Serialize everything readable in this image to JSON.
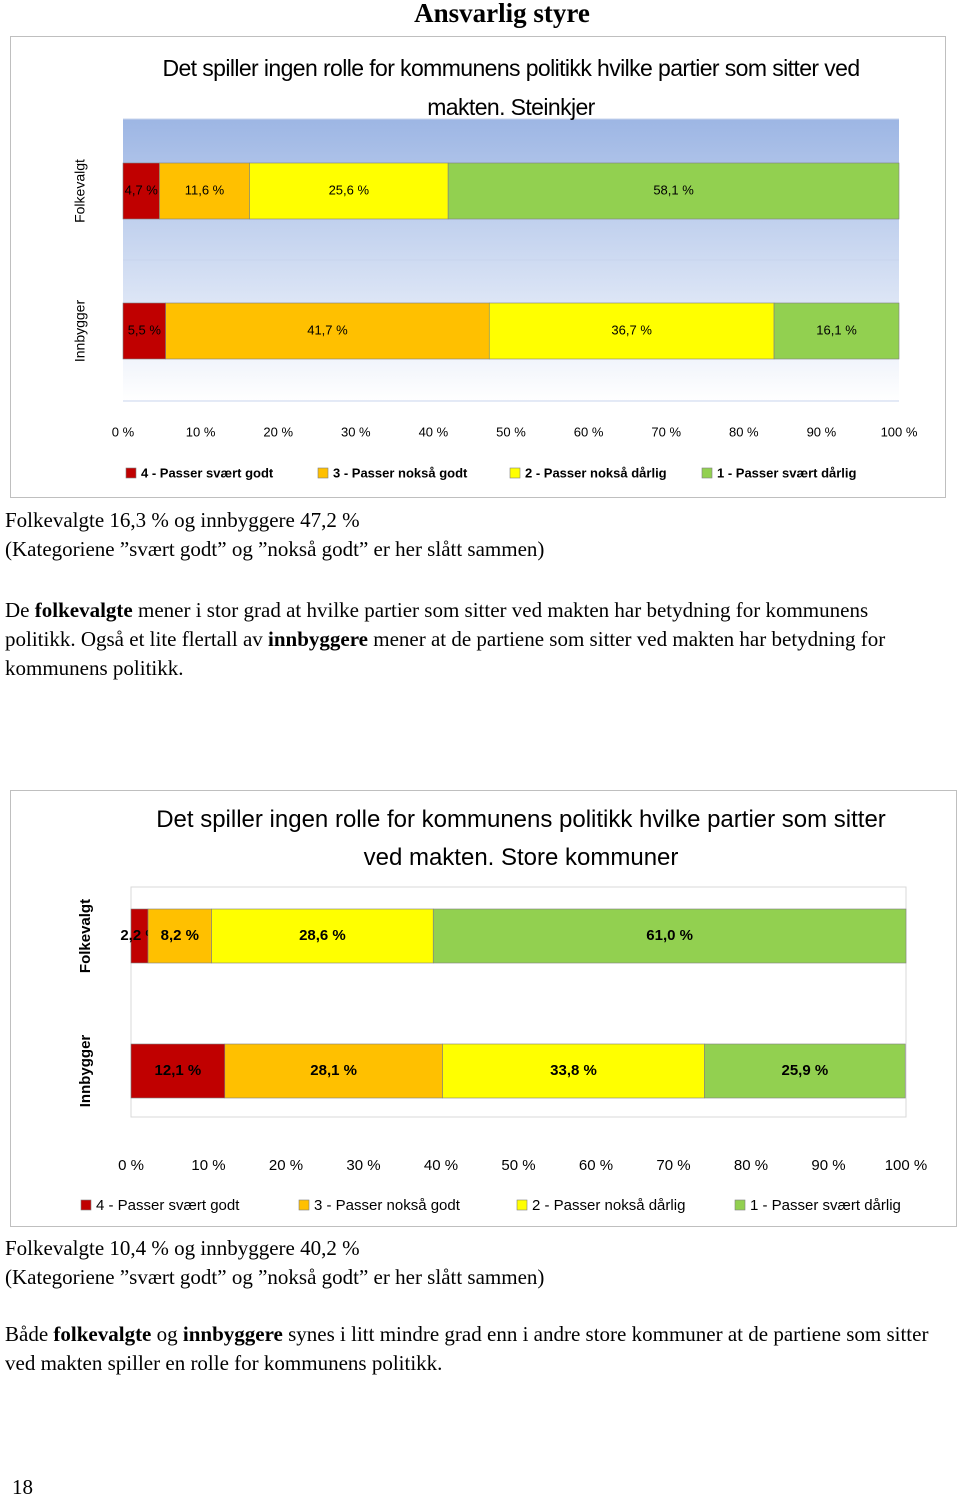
{
  "page_title": "Ansvarlig styre",
  "chart_data": [
    {
      "type": "stacked-bar-horizontal",
      "title": "Det spiller ingen rolle for kommunens politikk hvilke partier som sitter ved makten. Steinkjer",
      "categories": [
        "Folkevalgt",
        "Innbygger"
      ],
      "series": [
        {
          "name": "4 - Passer svært godt",
          "color": "#c00000",
          "values": [
            4.7,
            5.5
          ],
          "value_labels": [
            "4,7 %",
            "5,5 %"
          ]
        },
        {
          "name": "3 - Passer nokså godt",
          "color": "#ffc000",
          "values": [
            11.6,
            41.7
          ],
          "value_labels": [
            "11,6 %",
            "41,7 %"
          ]
        },
        {
          "name": "2 - Passer nokså dårlig",
          "color": "#ffff00",
          "values": [
            25.6,
            36.7
          ],
          "value_labels": [
            "25,6 %",
            "36,7 %"
          ]
        },
        {
          "name": "1 - Passer svært dårlig",
          "color": "#92d050",
          "values": [
            58.1,
            16.1
          ],
          "value_labels": [
            "58,1 %",
            "16,1 %"
          ]
        }
      ],
      "xlim": [
        0,
        100
      ],
      "xticks": [
        {
          "value": 0,
          "label": "0 %"
        },
        {
          "value": 10,
          "label": "10 %"
        },
        {
          "value": 20,
          "label": "20 %"
        },
        {
          "value": 30,
          "label": "30 %"
        },
        {
          "value": 40,
          "label": "40 %"
        },
        {
          "value": 50,
          "label": "50 %"
        },
        {
          "value": 60,
          "label": "60 %"
        },
        {
          "value": 70,
          "label": "70 %"
        },
        {
          "value": 80,
          "label": "80 %"
        },
        {
          "value": 90,
          "label": "90 %"
        },
        {
          "value": 100,
          "label": "100 %"
        }
      ],
      "legend": "bottom"
    },
    {
      "type": "stacked-bar-horizontal",
      "title": "Det spiller ingen rolle for kommunens politikk hvilke partier som sitter ved makten. Store kommuner",
      "categories": [
        "Folkevalgt",
        "Innbygger"
      ],
      "series": [
        {
          "name": "4 - Passer svært godt",
          "color": "#c00000",
          "values": [
            2.2,
            12.1
          ],
          "value_labels": [
            "2,2 %",
            "12,1 %"
          ]
        },
        {
          "name": "3 - Passer nokså godt",
          "color": "#ffc000",
          "values": [
            8.2,
            28.1
          ],
          "value_labels": [
            "8,2 %",
            "28,1 %"
          ]
        },
        {
          "name": "2 - Passer nokså dårlig",
          "color": "#ffff00",
          "values": [
            28.6,
            33.8
          ],
          "value_labels": [
            "28,6 %",
            "33,8 %"
          ]
        },
        {
          "name": "1 - Passer svært dårlig",
          "color": "#92d050",
          "values": [
            61.0,
            25.9
          ],
          "value_labels": [
            "61,0 %",
            "25,9 %"
          ]
        }
      ],
      "xlim": [
        0,
        100
      ],
      "xticks": [
        {
          "value": 0,
          "label": "0 %"
        },
        {
          "value": 10,
          "label": "10 %"
        },
        {
          "value": 20,
          "label": "20 %"
        },
        {
          "value": 30,
          "label": "30 %"
        },
        {
          "value": 40,
          "label": "40 %"
        },
        {
          "value": 50,
          "label": "50 %"
        },
        {
          "value": 60,
          "label": "60 %"
        },
        {
          "value": 70,
          "label": "70 %"
        },
        {
          "value": 80,
          "label": "80 %"
        },
        {
          "value": 90,
          "label": "90 %"
        },
        {
          "value": 100,
          "label": "100 %"
        }
      ],
      "legend": "bottom"
    }
  ],
  "sections": [
    {
      "summary": [
        "Folkevalgte 16,3 % og innbyggere 47,2 %",
        "(Kategoriene ”svært godt” og ”nokså godt” er her slått sammen)"
      ],
      "paragraph": [
        "De ",
        "folkevalgte",
        " mener i stor grad at hvilke partier som sitter ved makten har betydning for kommunens politikk. Også et lite flertall av ",
        "innbyggere",
        " mener at de partiene som sitter ved makten har betydning for kommunens politikk."
      ]
    },
    {
      "summary": [
        "Folkevalgte 10,4 % og innbyggere 40,2 %",
        "(Kategoriene ”svært godt” og ”nokså godt” er her slått sammen)"
      ],
      "paragraph": [
        "Både ",
        "folkevalgte",
        " og ",
        "innbyggere",
        " synes i litt mindre grad enn i andre store kommuner at de partiene som sitter ved makten spiller en rolle for kommunens politikk."
      ]
    }
  ],
  "page_number": "18"
}
